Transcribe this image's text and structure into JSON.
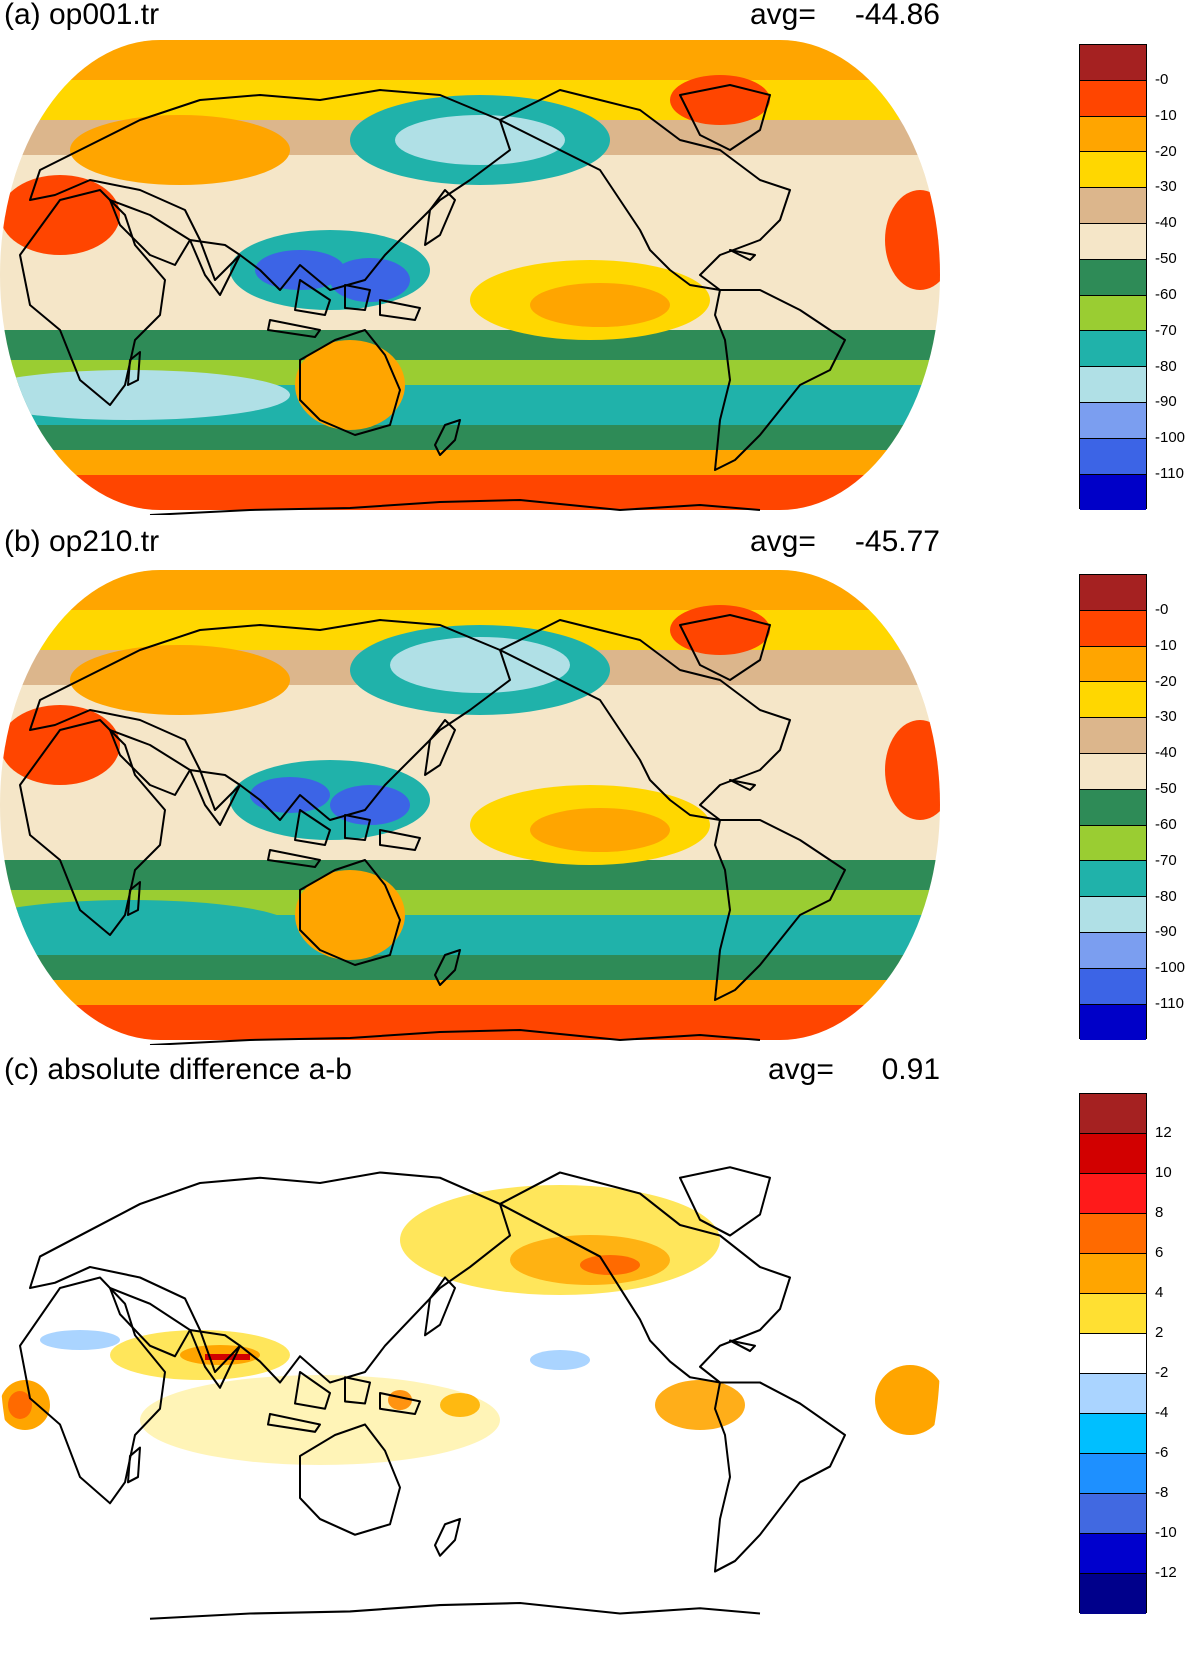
{
  "panels": [
    {
      "title": "(a) op001.tr",
      "avg_label": "avg=",
      "avg_value": "-44.86",
      "colorbar": {
        "colors": [
          "#a52121",
          "#ff4500",
          "#ffa500",
          "#ffd700",
          "#dcb68c",
          "#f5e6c8",
          "#2e8b57",
          "#9acd32",
          "#20b2aa",
          "#b0e0e6",
          "#7b9ef0",
          "#3c64e6",
          "#0000c8"
        ],
        "labels": [
          "-0",
          "-10",
          "-20",
          "-30",
          "-40",
          "-50",
          "-60",
          "-70",
          "-80",
          "-90",
          "-100",
          "-110"
        ]
      }
    },
    {
      "title": "(b) op210.tr",
      "avg_label": "avg=",
      "avg_value": "-45.77",
      "colorbar": {
        "colors": [
          "#a52121",
          "#ff4500",
          "#ffa500",
          "#ffd700",
          "#dcb68c",
          "#f5e6c8",
          "#2e8b57",
          "#9acd32",
          "#20b2aa",
          "#b0e0e6",
          "#7b9ef0",
          "#3c64e6",
          "#0000c8"
        ],
        "labels": [
          "-0",
          "-10",
          "-20",
          "-30",
          "-40",
          "-50",
          "-60",
          "-70",
          "-80",
          "-90",
          "-100",
          "-110"
        ]
      }
    },
    {
      "title": "(c) absolute difference a-b",
      "avg_label": "avg=",
      "avg_value": "0.91",
      "colorbar": {
        "colors": [
          "#a52121",
          "#d20000",
          "#ff1a1a",
          "#ff6a00",
          "#ffa500",
          "#ffe032",
          "#ffffff",
          "#aad4ff",
          "#00bfff",
          "#1e90ff",
          "#4169e1",
          "#0000cd",
          "#00008b"
        ],
        "labels": [
          "12",
          "10",
          "8",
          "6",
          "4",
          "2",
          "-2",
          "-4",
          "-6",
          "-8",
          "-10",
          "-12"
        ]
      }
    }
  ]
}
